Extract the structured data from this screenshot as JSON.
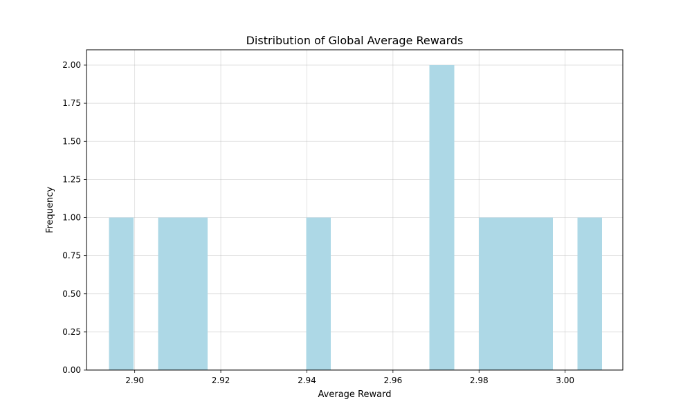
{
  "chart_data": {
    "type": "bar",
    "title": "Distribution of Global Average Rewards",
    "xlabel": "Average Reward",
    "ylabel": "Frequency",
    "bar_color": "#add8e6",
    "grid": true,
    "xlim": [
      2.8888,
      3.0134
    ],
    "ylim": [
      0,
      2.1
    ],
    "bin_edges": [
      2.894,
      2.89973,
      2.90546,
      2.91119,
      2.91692,
      2.92265,
      2.92838,
      2.93411,
      2.93984,
      2.94557,
      2.9513,
      2.95703,
      2.96276,
      2.96849,
      2.97422,
      2.97995,
      2.98568,
      2.99141,
      2.99714,
      3.00287,
      3.0086
    ],
    "counts": [
      1,
      0,
      1,
      1,
      0,
      0,
      0,
      0,
      1,
      0,
      0,
      0,
      0,
      2,
      0,
      1,
      1,
      1,
      0,
      1
    ],
    "xticks": [
      2.9,
      2.92,
      2.94,
      2.96,
      2.98,
      3.0
    ],
    "xtick_labels": [
      "2.90",
      "2.92",
      "2.94",
      "2.96",
      "2.98",
      "3.00"
    ],
    "yticks": [
      0,
      0.25,
      0.5,
      0.75,
      1.0,
      1.25,
      1.5,
      1.75,
      2.0
    ],
    "ytick_labels": [
      "0.00",
      "0.25",
      "0.50",
      "0.75",
      "1.00",
      "1.25",
      "1.50",
      "1.75",
      "2.00"
    ]
  }
}
